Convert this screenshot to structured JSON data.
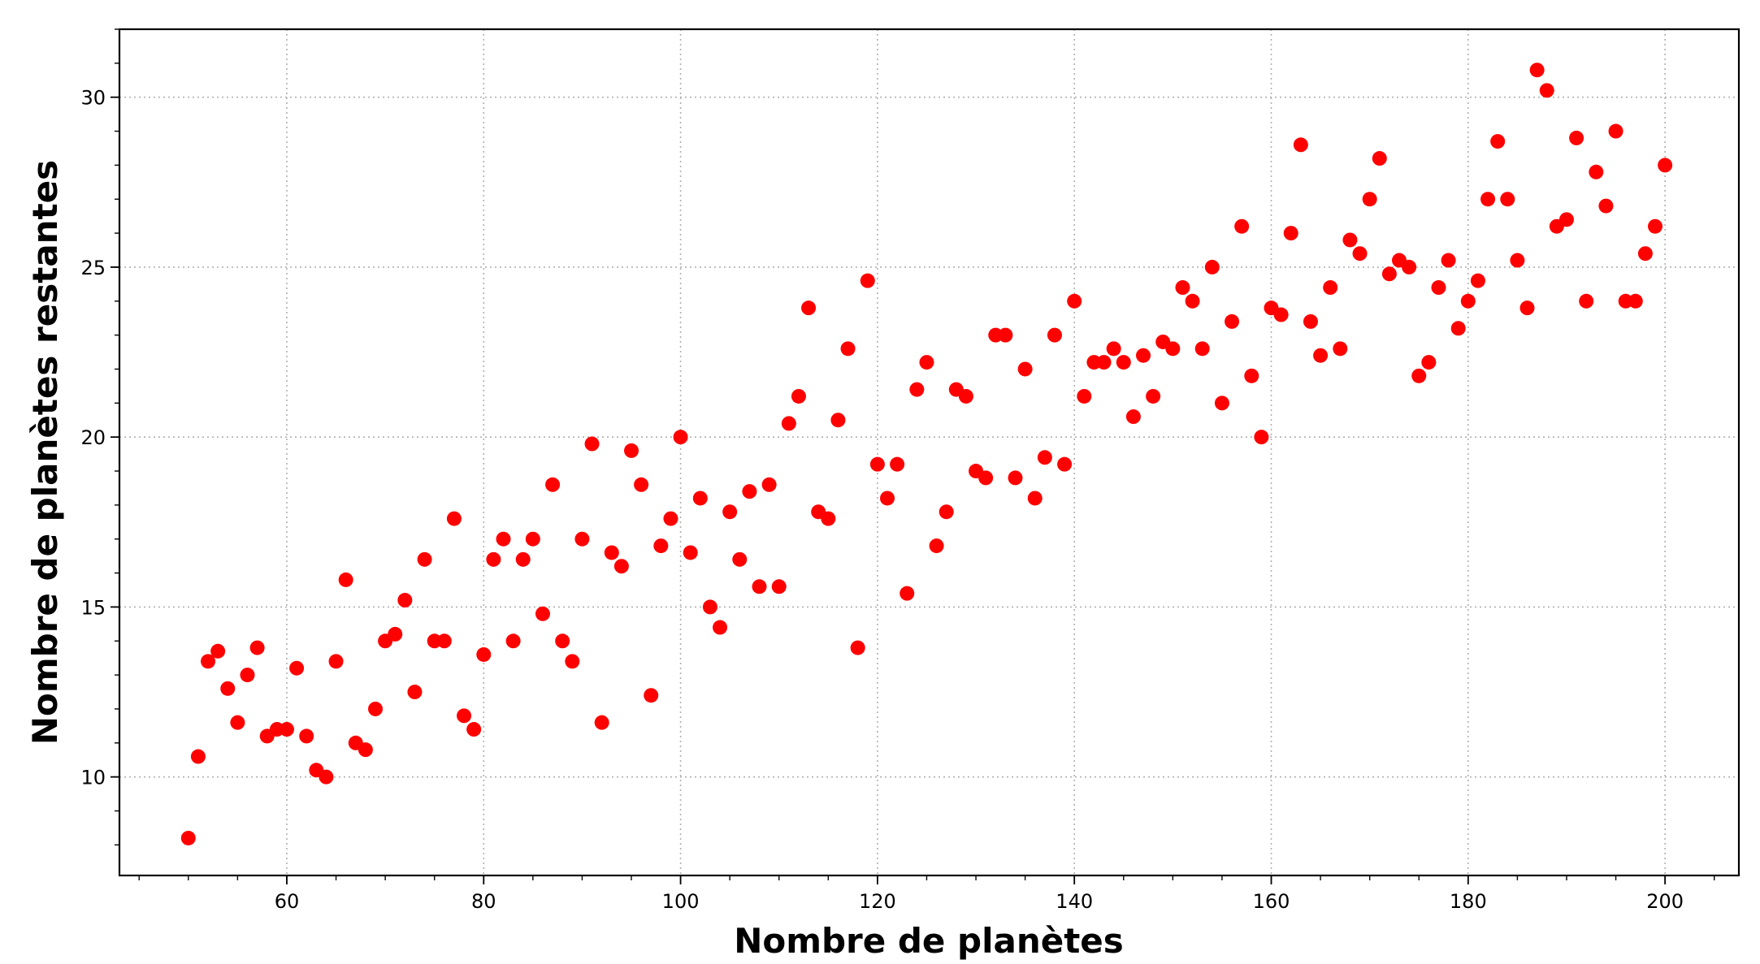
{
  "chart_data": {
    "type": "scatter",
    "title": "",
    "xlabel": "Nombre de planètes",
    "ylabel": "Nombre de planètes restantes",
    "xlim": [
      43,
      207.5
    ],
    "ylim": [
      7.1,
      32
    ],
    "xticks": [
      60,
      80,
      100,
      120,
      140,
      160,
      180,
      200
    ],
    "xtick_labels": [
      "60",
      "80",
      "100",
      "120",
      "140",
      "160",
      "180",
      "200"
    ],
    "xminor_step": 5,
    "yticks": [
      10,
      15,
      20,
      25,
      30
    ],
    "ytick_labels": [
      "10",
      "15",
      "20",
      "25",
      "30"
    ],
    "yminor_step": 1,
    "grid": true,
    "legend": "none",
    "marker_color": "#ff0000",
    "points": [
      [
        50,
        8.2
      ],
      [
        51,
        10.6
      ],
      [
        52,
        13.4
      ],
      [
        53,
        13.7
      ],
      [
        54,
        12.6
      ],
      [
        55,
        11.6
      ],
      [
        56,
        13.0
      ],
      [
        57,
        13.8
      ],
      [
        58,
        11.2
      ],
      [
        59,
        11.4
      ],
      [
        60,
        11.4
      ],
      [
        61,
        13.2
      ],
      [
        62,
        11.2
      ],
      [
        63,
        10.2
      ],
      [
        64,
        10.0
      ],
      [
        65,
        13.4
      ],
      [
        66,
        15.8
      ],
      [
        67,
        11.0
      ],
      [
        68,
        10.8
      ],
      [
        69,
        12.0
      ],
      [
        70,
        14.0
      ],
      [
        71,
        14.2
      ],
      [
        72,
        15.2
      ],
      [
        73,
        12.5
      ],
      [
        74,
        16.4
      ],
      [
        75,
        14.0
      ],
      [
        76,
        14.0
      ],
      [
        77,
        17.6
      ],
      [
        78,
        11.8
      ],
      [
        79,
        11.4
      ],
      [
        80,
        13.6
      ],
      [
        81,
        16.4
      ],
      [
        82,
        17.0
      ],
      [
        83,
        14.0
      ],
      [
        84,
        16.4
      ],
      [
        85,
        17.0
      ],
      [
        86,
        14.8
      ],
      [
        87,
        18.6
      ],
      [
        88,
        14.0
      ],
      [
        89,
        13.4
      ],
      [
        90,
        17.0
      ],
      [
        91,
        19.8
      ],
      [
        92,
        11.6
      ],
      [
        93,
        16.6
      ],
      [
        94,
        16.2
      ],
      [
        95,
        19.6
      ],
      [
        96,
        18.6
      ],
      [
        97,
        12.4
      ],
      [
        98,
        16.8
      ],
      [
        99,
        17.6
      ],
      [
        100,
        20.0
      ],
      [
        101,
        16.6
      ],
      [
        102,
        18.2
      ],
      [
        103,
        15.0
      ],
      [
        104,
        14.4
      ],
      [
        105,
        17.8
      ],
      [
        106,
        16.4
      ],
      [
        107,
        18.4
      ],
      [
        108,
        15.6
      ],
      [
        109,
        18.6
      ],
      [
        110,
        15.6
      ],
      [
        111,
        20.4
      ],
      [
        112,
        21.2
      ],
      [
        113,
        23.8
      ],
      [
        114,
        17.8
      ],
      [
        115,
        17.6
      ],
      [
        116,
        20.5
      ],
      [
        117,
        22.6
      ],
      [
        118,
        13.8
      ],
      [
        119,
        24.6
      ],
      [
        120,
        19.2
      ],
      [
        121,
        18.2
      ],
      [
        122,
        19.2
      ],
      [
        123,
        15.4
      ],
      [
        124,
        21.4
      ],
      [
        125,
        22.2
      ],
      [
        126,
        16.8
      ],
      [
        127,
        17.8
      ],
      [
        128,
        21.4
      ],
      [
        129,
        21.2
      ],
      [
        130,
        19.0
      ],
      [
        131,
        18.8
      ],
      [
        132,
        23.0
      ],
      [
        133,
        23.0
      ],
      [
        134,
        18.8
      ],
      [
        135,
        22.0
      ],
      [
        136,
        18.2
      ],
      [
        137,
        19.4
      ],
      [
        138,
        23.0
      ],
      [
        139,
        19.2
      ],
      [
        140,
        24.0
      ],
      [
        141,
        21.2
      ],
      [
        142,
        22.2
      ],
      [
        143,
        22.2
      ],
      [
        144,
        22.6
      ],
      [
        145,
        22.2
      ],
      [
        146,
        20.6
      ],
      [
        147,
        22.4
      ],
      [
        148,
        21.2
      ],
      [
        149,
        22.8
      ],
      [
        150,
        22.6
      ],
      [
        151,
        24.4
      ],
      [
        152,
        24.0
      ],
      [
        153,
        22.6
      ],
      [
        154,
        25.0
      ],
      [
        155,
        21.0
      ],
      [
        156,
        23.4
      ],
      [
        157,
        26.2
      ],
      [
        158,
        21.8
      ],
      [
        159,
        20.0
      ],
      [
        160,
        23.8
      ],
      [
        161,
        23.6
      ],
      [
        162,
        26.0
      ],
      [
        163,
        28.6
      ],
      [
        164,
        23.4
      ],
      [
        165,
        22.4
      ],
      [
        166,
        24.4
      ],
      [
        167,
        22.6
      ],
      [
        168,
        25.8
      ],
      [
        169,
        25.4
      ],
      [
        170,
        27.0
      ],
      [
        171,
        28.2
      ],
      [
        172,
        24.8
      ],
      [
        173,
        25.2
      ],
      [
        174,
        25.0
      ],
      [
        175,
        21.8
      ],
      [
        176,
        22.2
      ],
      [
        177,
        24.4
      ],
      [
        178,
        25.2
      ],
      [
        179,
        23.2
      ],
      [
        180,
        24.0
      ],
      [
        181,
        24.6
      ],
      [
        182,
        27.0
      ],
      [
        183,
        28.7
      ],
      [
        184,
        27.0
      ],
      [
        185,
        25.2
      ],
      [
        186,
        23.8
      ],
      [
        187,
        30.8
      ],
      [
        188,
        30.2
      ],
      [
        189,
        26.2
      ],
      [
        190,
        26.4
      ],
      [
        191,
        28.8
      ],
      [
        192,
        24.0
      ],
      [
        193,
        27.8
      ],
      [
        194,
        26.8
      ],
      [
        195,
        29.0
      ],
      [
        196,
        24.0
      ],
      [
        197,
        24.0
      ],
      [
        198,
        25.4
      ],
      [
        199,
        26.2
      ],
      [
        200,
        28.0
      ]
    ]
  }
}
